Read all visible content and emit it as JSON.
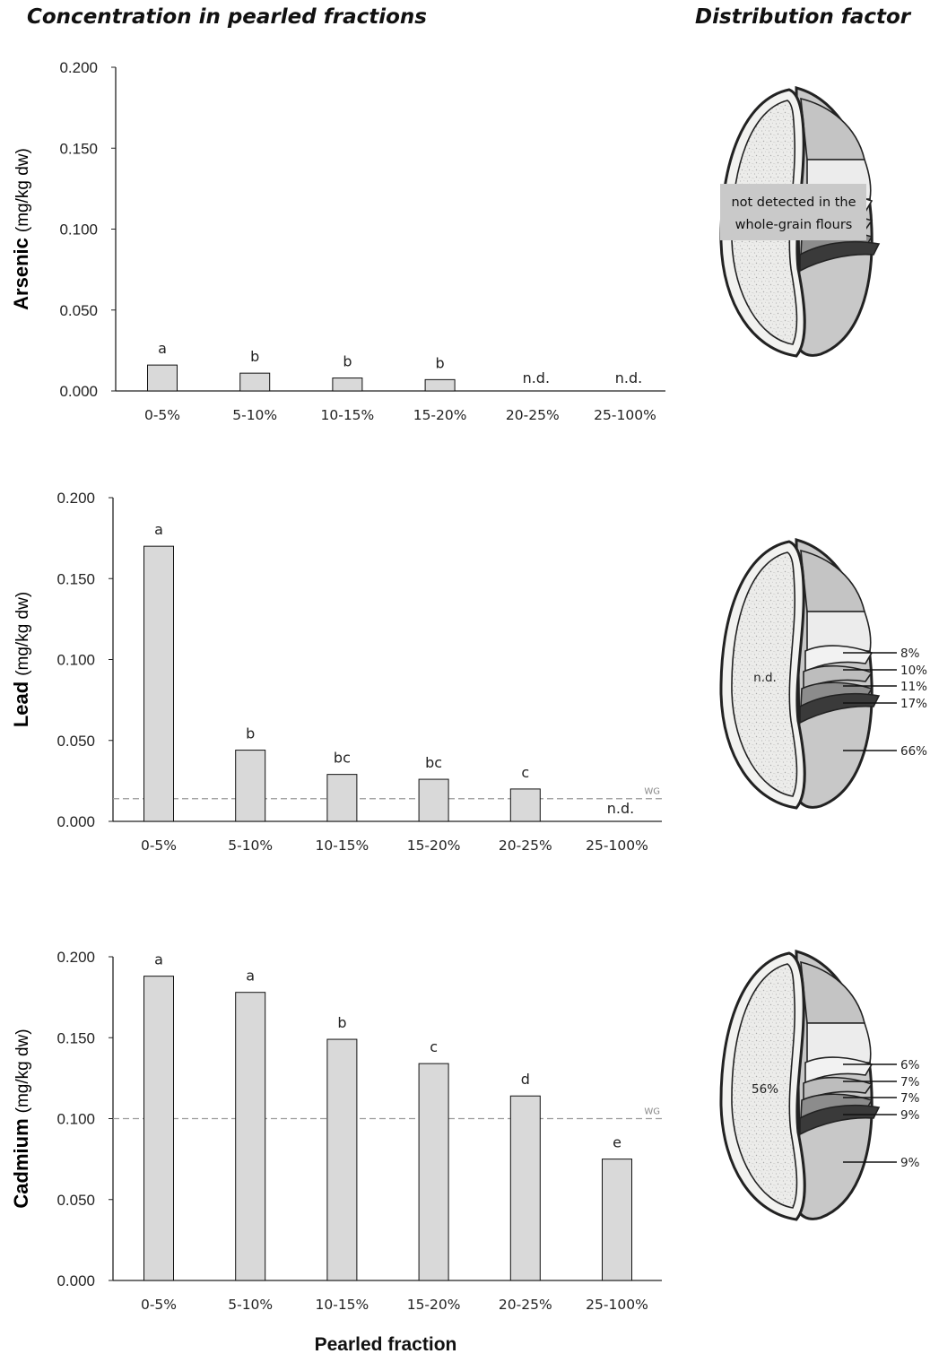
{
  "headings": {
    "left": "Concentration in pearled fractions",
    "right": "Distribution factor"
  },
  "x_axis_label": "Pearled fraction",
  "chart_data": [
    {
      "type": "bar",
      "element": "Arsenic",
      "unit": "(mg/kg dw)",
      "categories": [
        "0-5%",
        "5-10%",
        "10-15%",
        "15-20%",
        "20-25%",
        "25-100%"
      ],
      "values": [
        0.016,
        0.011,
        0.008,
        0.007,
        null,
        null
      ],
      "letters": [
        "a",
        "b",
        "b",
        "b",
        "n.d.",
        "n.d."
      ],
      "ylim": [
        0,
        0.2
      ],
      "yticks": [
        "0.000",
        "0.050",
        "0.100",
        "0.150",
        "0.200"
      ],
      "wg": null,
      "wg_label": ""
    },
    {
      "type": "bar",
      "element": "Lead",
      "unit": "(mg/kg dw)",
      "categories": [
        "0-5%",
        "5-10%",
        "10-15%",
        "15-20%",
        "20-25%",
        "25-100%"
      ],
      "values": [
        0.17,
        0.044,
        0.029,
        0.026,
        0.02,
        null
      ],
      "letters": [
        "a",
        "b",
        "bc",
        "bc",
        "c",
        "n.d."
      ],
      "ylim": [
        0,
        0.2
      ],
      "yticks": [
        "0.000",
        "0.050",
        "0.100",
        "0.150",
        "0.200"
      ],
      "wg": 0.014,
      "wg_label": "WG"
    },
    {
      "type": "bar",
      "element": "Cadmium",
      "unit": "(mg/kg dw)",
      "categories": [
        "0-5%",
        "5-10%",
        "10-15%",
        "15-20%",
        "20-25%",
        "25-100%"
      ],
      "values": [
        0.188,
        0.178,
        0.149,
        0.134,
        0.114,
        0.075
      ],
      "letters": [
        "a",
        "a",
        "b",
        "c",
        "d",
        "e"
      ],
      "ylim": [
        0,
        0.2
      ],
      "yticks": [
        "0.000",
        "0.050",
        "0.100",
        "0.150",
        "0.200"
      ],
      "wg": 0.1,
      "wg_label": "WG"
    }
  ],
  "distribution": [
    {
      "note": [
        "not detected in the",
        "whole-grain flours"
      ],
      "endosperm": "",
      "layers": []
    },
    {
      "note": [],
      "endosperm": "n.d.",
      "layers": [
        "8%",
        "10%",
        "11%",
        "17%",
        "66%"
      ]
    },
    {
      "note": [],
      "endosperm": "56%",
      "layers": [
        "6%",
        "7%",
        "7%",
        "9%",
        "9%"
      ]
    }
  ],
  "colors": {
    "bar_fill": "#d9d9d9",
    "bar_stroke": "#111111",
    "wg_line": "#9a9a9a",
    "layer_fills": [
      "#f2f2f2",
      "#bdbdbd",
      "#8c8c8c",
      "#3a3a3a",
      "#c8c8c8"
    ],
    "endosperm_fill": "#e8e8e4",
    "outline": "#222222"
  }
}
